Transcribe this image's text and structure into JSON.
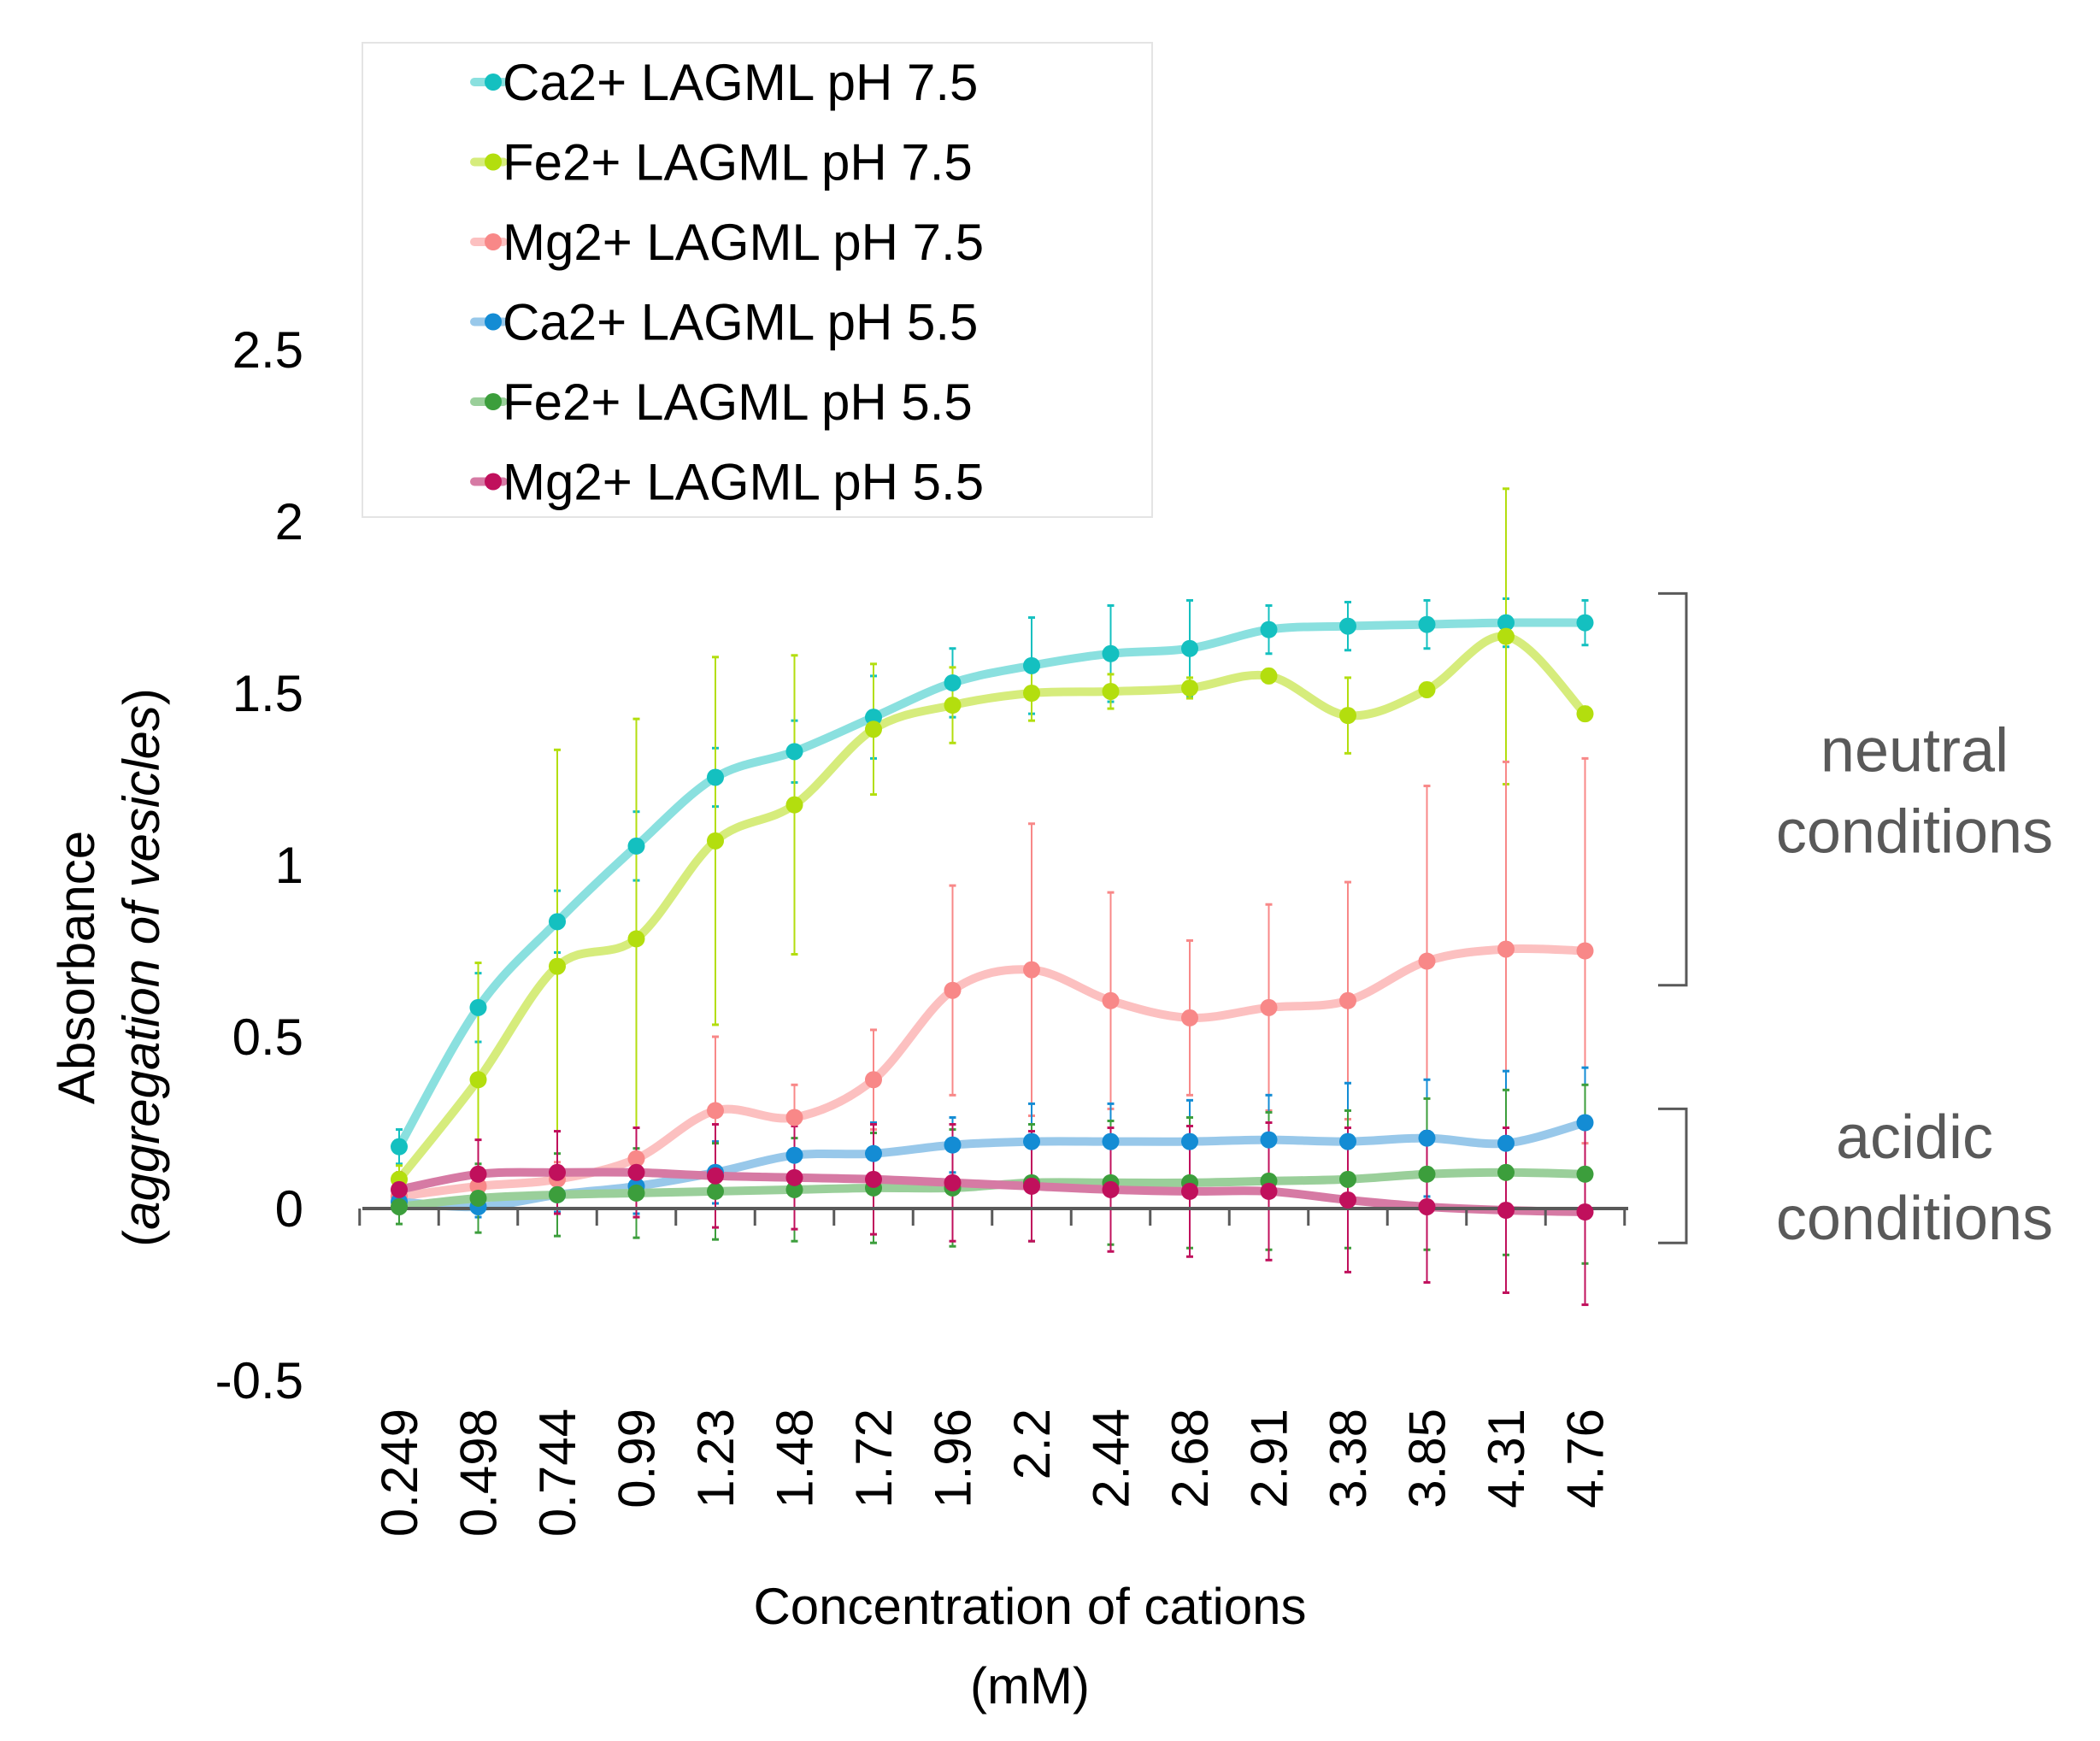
{
  "chart_data": {
    "type": "line",
    "title": "",
    "xlabel": [
      "Concentration of cations",
      "(mM)"
    ],
    "ylabel": {
      "plain": "Absorbance",
      "open": "(",
      "italic": "aggregation of vesicles",
      "close": ")"
    },
    "categories": [
      "0.249",
      "0.498",
      "0.744",
      "0.99",
      "1.23",
      "1.48",
      "1.72",
      "1.96",
      "2.2",
      "2.44",
      "2.68",
      "2.91",
      "3.38",
      "3.85",
      "4.31",
      "4.76"
    ],
    "y_ticks": [
      "2.5",
      "2",
      "1.5",
      "1",
      "0.5",
      "0",
      "-0.5"
    ],
    "ylim": [
      -0.5,
      2.5
    ],
    "grid": false,
    "legend_position": "top",
    "series": [
      {
        "name": "Ca2+ LAGML pH 7.5",
        "color": "#14c0c0",
        "line_color": "#8ae0df",
        "values": [
          0.18,
          0.585,
          0.835,
          1.055,
          1.255,
          1.33,
          1.43,
          1.53,
          1.58,
          1.615,
          1.63,
          1.685,
          1.695,
          1.7,
          1.705,
          1.705
        ],
        "errors": [
          0.05,
          0.1,
          0.09,
          0.1,
          0.085,
          0.09,
          0.12,
          0.1,
          0.14,
          0.14,
          0.14,
          0.07,
          0.07,
          0.07,
          0.07,
          0.065
        ]
      },
      {
        "name": "Fe2+ LAGML pH 7.5",
        "color": "#b3de0e",
        "line_color": "#d6ec7c",
        "values": [
          0.085,
          0.375,
          0.705,
          0.785,
          1.07,
          1.175,
          1.395,
          1.465,
          1.5,
          1.505,
          1.515,
          1.55,
          1.435,
          1.51,
          1.665,
          1.44
        ],
        "errors": [
          0.04,
          0.34,
          0.63,
          0.64,
          0.535,
          0.435,
          0.19,
          0.11,
          0.08,
          0.05,
          0.03,
          0.02,
          0.11,
          0.02,
          0.43,
          0.02
        ]
      },
      {
        "name": "Mg2+ LAGML pH 7.5",
        "color": "#f88888",
        "line_color": "#fcc0c0",
        "values": [
          0.035,
          0.065,
          0.085,
          0.145,
          0.285,
          0.265,
          0.375,
          0.635,
          0.695,
          0.605,
          0.555,
          0.585,
          0.605,
          0.72,
          0.755,
          0.75
        ],
        "errors": [
          0.02,
          0.04,
          0.05,
          0.09,
          0.215,
          0.095,
          0.145,
          0.305,
          0.425,
          0.315,
          0.225,
          0.3,
          0.345,
          0.51,
          0.545,
          0.56
        ]
      },
      {
        "name": "Ca2+ LAGML pH 5.5",
        "color": "#148cd4",
        "line_color": "#98c8ea",
        "values": [
          0.02,
          0.005,
          0.04,
          0.065,
          0.105,
          0.155,
          0.16,
          0.185,
          0.195,
          0.195,
          0.195,
          0.2,
          0.195,
          0.205,
          0.19,
          0.25
        ],
        "errors": [
          0.03,
          0.03,
          0.05,
          0.08,
          0.09,
          0.09,
          0.09,
          0.08,
          0.11,
          0.11,
          0.12,
          0.13,
          0.17,
          0.17,
          0.21,
          0.16
        ]
      },
      {
        "name": "Fe2+ LAGML pH 5.5",
        "color": "#3c9e3c",
        "line_color": "#9acf9a",
        "values": [
          0.005,
          0.03,
          0.04,
          0.045,
          0.05,
          0.055,
          0.06,
          0.06,
          0.075,
          0.075,
          0.075,
          0.08,
          0.085,
          0.1,
          0.105,
          0.1
        ],
        "errors": [
          0.05,
          0.1,
          0.12,
          0.13,
          0.14,
          0.15,
          0.16,
          0.17,
          0.17,
          0.18,
          0.19,
          0.2,
          0.2,
          0.22,
          0.24,
          0.26
        ]
      },
      {
        "name": "Mg2+ LAGML pH 5.5",
        "color": "#c0105c",
        "line_color": "#d67aa4",
        "values": [
          0.055,
          0.1,
          0.105,
          0.105,
          0.095,
          0.09,
          0.085,
          0.075,
          0.065,
          0.055,
          0.05,
          0.05,
          0.025,
          0.005,
          -0.005,
          -0.01
        ],
        "errors": [
          0.05,
          0.1,
          0.12,
          0.13,
          0.15,
          0.15,
          0.16,
          0.17,
          0.16,
          0.18,
          0.19,
          0.2,
          0.21,
          0.22,
          0.24,
          0.27
        ]
      }
    ],
    "annotations": [
      {
        "lines": [
          "neutral",
          "conditions"
        ],
        "range": [
          0.65,
          1.79
        ]
      },
      {
        "lines": [
          "acidic",
          "conditions"
        ],
        "range": [
          -0.1,
          0.29
        ]
      }
    ]
  }
}
